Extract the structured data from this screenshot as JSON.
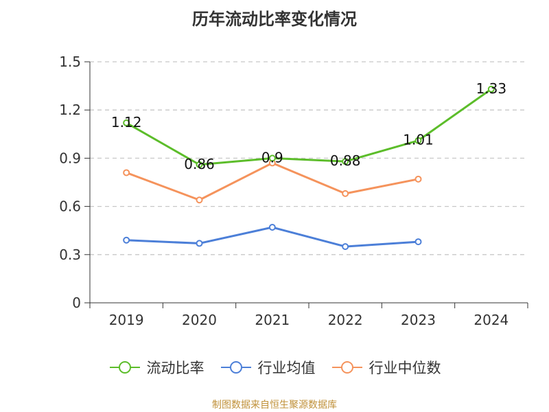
{
  "chart_data": {
    "type": "line",
    "title": "历年流动比率变化情况",
    "categories": [
      "2019",
      "2020",
      "2021",
      "2022",
      "2023",
      "2024"
    ],
    "yticks": [
      "0",
      "0.3",
      "0.6",
      "0.9",
      "1.2",
      "1.5"
    ],
    "ylim": [
      0,
      1.5
    ],
    "grid": true,
    "legend_position": "bottom",
    "series": [
      {
        "name": "流动比率",
        "color": "#5cbd2a",
        "values": [
          1.12,
          0.86,
          0.9,
          0.88,
          1.01,
          1.33
        ],
        "labels": [
          "1.12",
          "0.86",
          "0.9",
          "0.88",
          "1.01",
          "1.33"
        ]
      },
      {
        "name": "行业均值",
        "color": "#4c7fd8",
        "values": [
          0.39,
          0.37,
          0.47,
          0.35,
          0.38,
          null
        ]
      },
      {
        "name": "行业中位数",
        "color": "#f5935c",
        "values": [
          0.81,
          0.64,
          0.87,
          0.68,
          0.77,
          null
        ]
      }
    ]
  },
  "source": "制图数据来自恒生聚源数据库"
}
